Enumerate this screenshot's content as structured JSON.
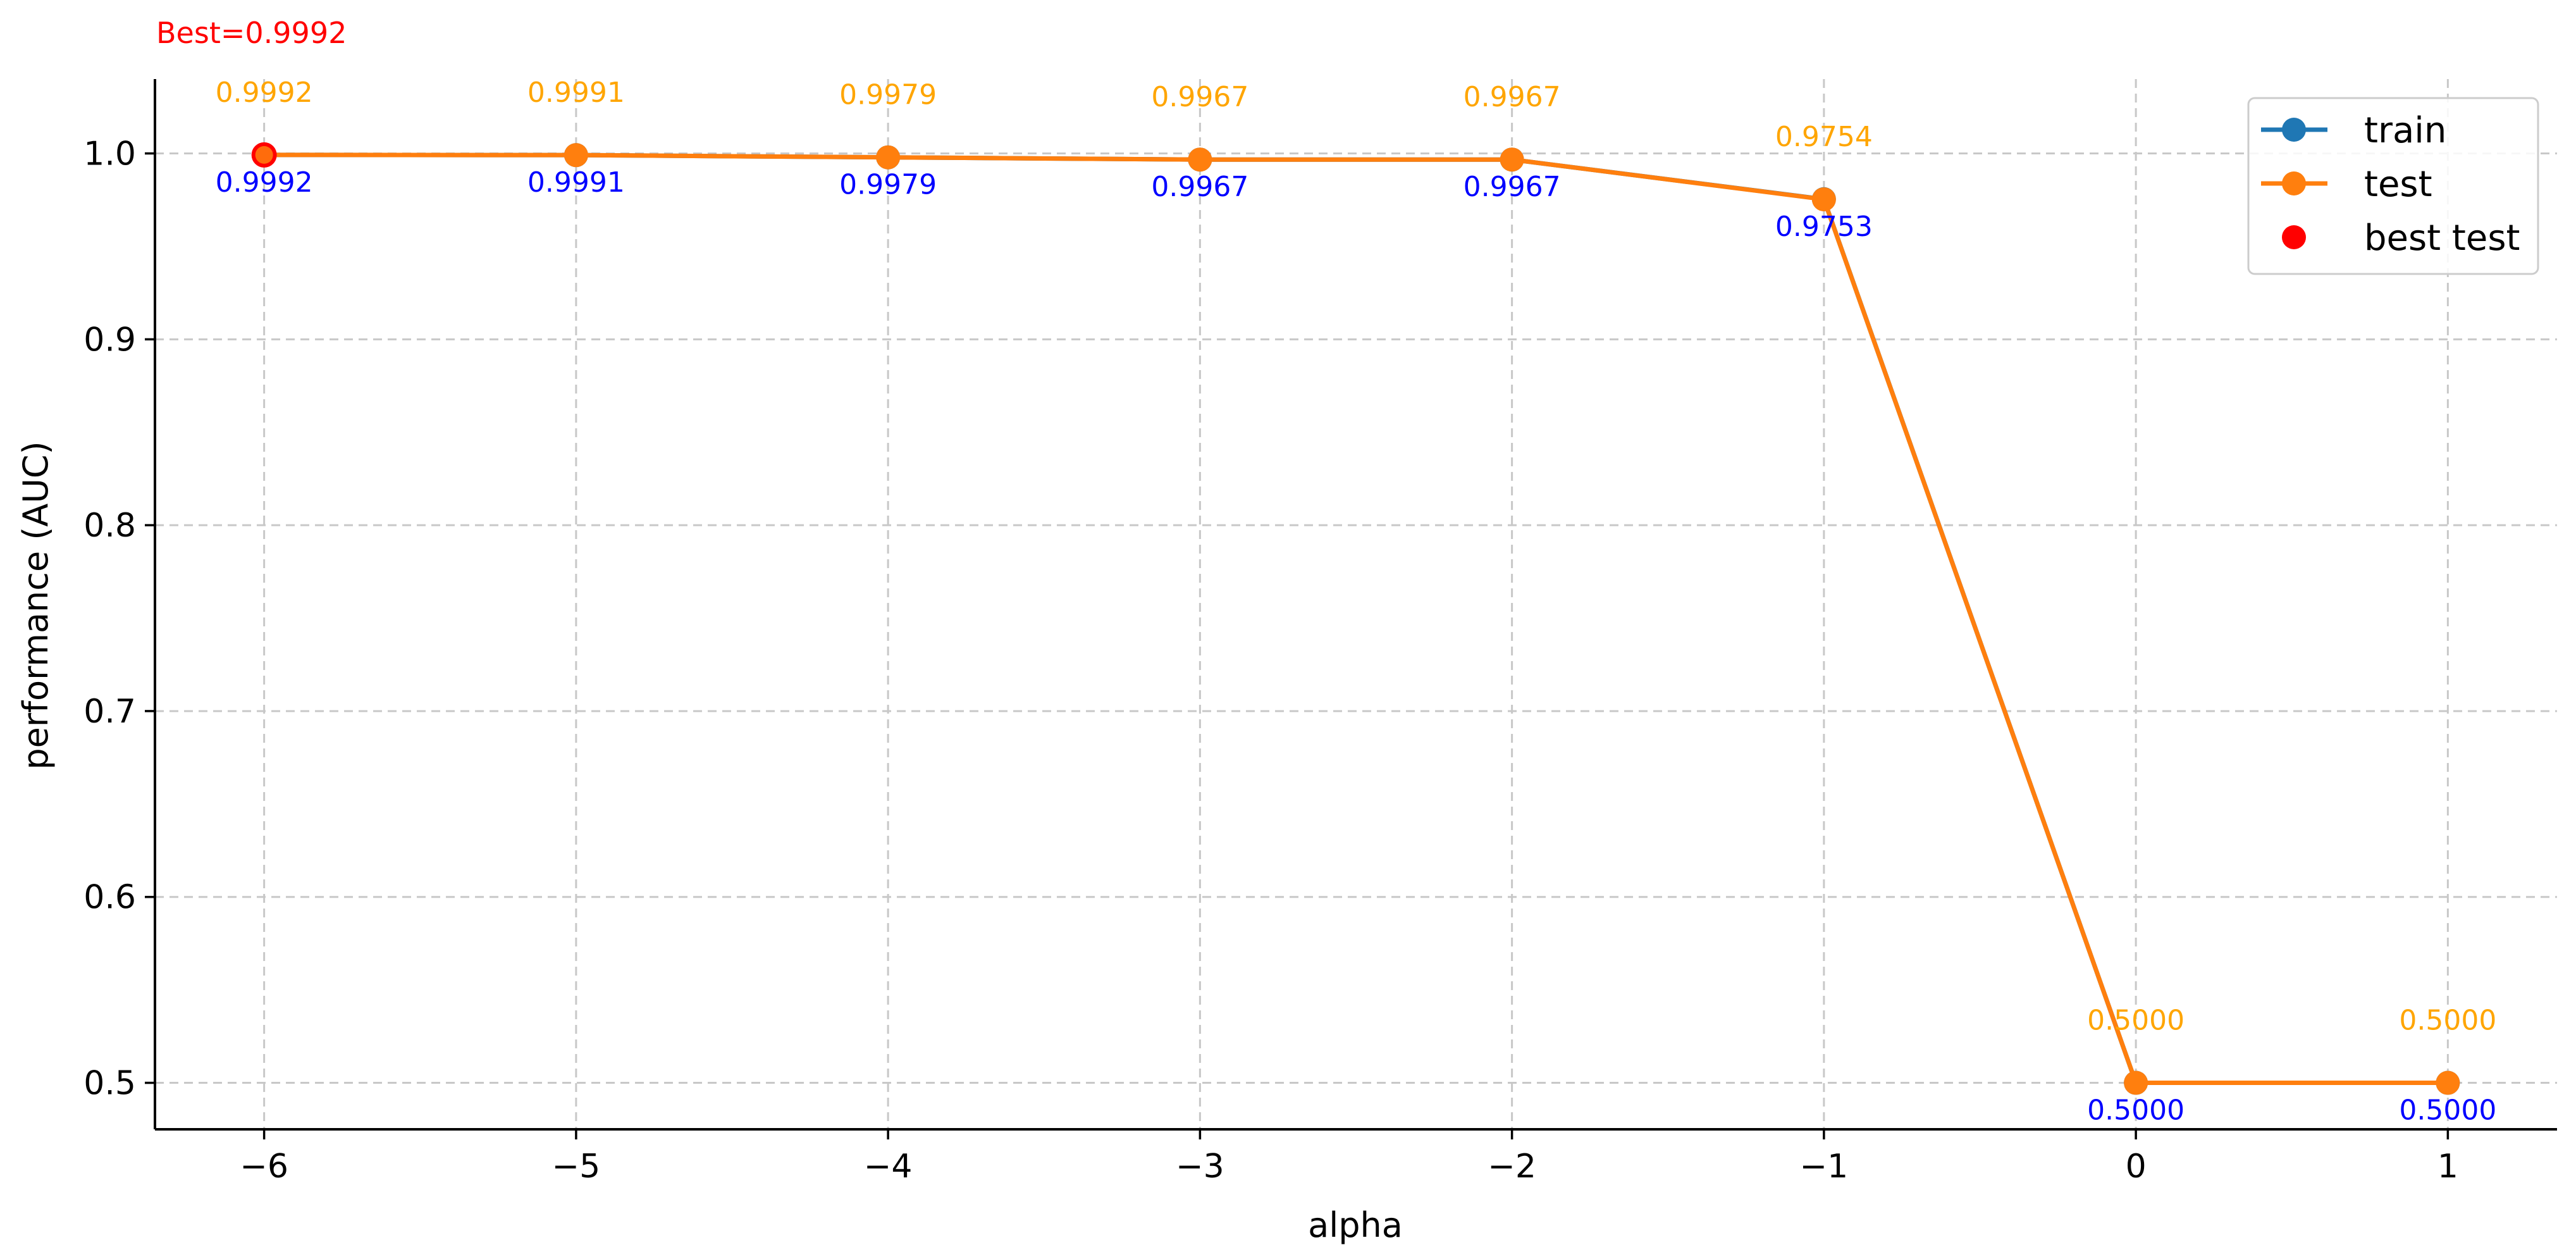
{
  "chart_data": {
    "type": "line",
    "xlabel": "alpha",
    "ylabel": "performance (AUC)",
    "x": [
      -6,
      -5,
      -4,
      -3,
      -2,
      -1,
      0,
      1
    ],
    "x_tick_labels": [
      "−6",
      "−5",
      "−4",
      "−3",
      "−2",
      "−1",
      "0",
      "1"
    ],
    "y_ticks": [
      0.5,
      0.6,
      0.7,
      0.8,
      0.9,
      1.0
    ],
    "y_tick_labels": [
      "0.5",
      "0.6",
      "0.7",
      "0.8",
      "0.9",
      "1.0"
    ],
    "xlim": [
      -6.35,
      1.35
    ],
    "ylim": [
      0.475,
      1.04
    ],
    "grid": true,
    "legend_position": "top-right",
    "series": [
      {
        "name": "train",
        "color": "#1f77b4",
        "values": [
          0.9992,
          0.9991,
          0.9979,
          0.9967,
          0.9967,
          0.9754,
          0.5,
          0.5
        ],
        "labels": [
          "0.9992",
          "0.9991",
          "0.9979",
          "0.9967",
          "0.9967",
          "0.9754",
          "0.5000",
          "0.5000"
        ],
        "label_color": "#ffa500"
      },
      {
        "name": "test",
        "color": "#ff7f0e",
        "values": [
          0.9992,
          0.9991,
          0.9979,
          0.9967,
          0.9967,
          0.9753,
          0.5,
          0.5
        ],
        "labels": [
          "0.9992",
          "0.9991",
          "0.9979",
          "0.9967",
          "0.9967",
          "0.9753",
          "0.5000",
          "0.5000"
        ],
        "label_color": "#0000ff"
      }
    ],
    "best": {
      "name": "best test",
      "x": -6,
      "y": 0.9992,
      "color": "#ff0000",
      "label": "Best=0.9992"
    }
  }
}
